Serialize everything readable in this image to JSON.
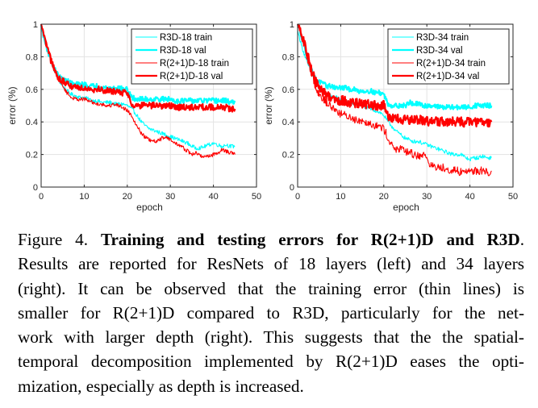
{
  "chart_data": [
    {
      "type": "line",
      "title": "",
      "xlabel": "epoch",
      "ylabel": "error (%)",
      "xlim": [
        0,
        50
      ],
      "ylim": [
        0,
        1
      ],
      "xticks": [
        0,
        10,
        20,
        30,
        40,
        50
      ],
      "yticks": [
        0,
        0.2,
        0.4,
        0.6,
        0.8,
        1
      ],
      "xtick_labels": [
        "0",
        "10",
        "20",
        "30",
        "40",
        "50"
      ],
      "ytick_labels": [
        "0",
        "0.2",
        "0.4",
        "0.6",
        "0.8",
        "1"
      ],
      "grid": true,
      "legend_position": "top-right",
      "x": [
        0,
        1,
        2,
        3,
        4,
        5,
        6,
        7,
        8,
        9,
        10,
        11,
        12,
        13,
        14,
        15,
        16,
        17,
        18,
        19,
        20,
        21,
        22,
        23,
        24,
        25,
        26,
        27,
        28,
        29,
        30,
        31,
        32,
        33,
        34,
        35,
        36,
        37,
        38,
        39,
        40,
        41,
        42,
        43,
        44,
        45
      ],
      "series": [
        {
          "name": "R3D-18 train",
          "color": "#00FFFF",
          "style": "thin",
          "noise": 0.012,
          "values": [
            0.98,
            0.88,
            0.8,
            0.72,
            0.66,
            0.62,
            0.59,
            0.57,
            0.56,
            0.55,
            0.55,
            0.54,
            0.53,
            0.53,
            0.52,
            0.52,
            0.52,
            0.51,
            0.51,
            0.51,
            0.5,
            0.48,
            0.45,
            0.41,
            0.38,
            0.36,
            0.35,
            0.34,
            0.33,
            0.32,
            0.31,
            0.3,
            0.29,
            0.28,
            0.27,
            0.25,
            0.24,
            0.24,
            0.25,
            0.26,
            0.27,
            0.26,
            0.25,
            0.26,
            0.25,
            0.25
          ]
        },
        {
          "name": "R3D-18 val",
          "color": "#00FFFF",
          "style": "thick",
          "noise": 0.016,
          "values": [
            0.99,
            0.88,
            0.8,
            0.73,
            0.68,
            0.66,
            0.65,
            0.64,
            0.63,
            0.63,
            0.63,
            0.62,
            0.62,
            0.62,
            0.61,
            0.61,
            0.61,
            0.61,
            0.61,
            0.6,
            0.6,
            0.55,
            0.54,
            0.54,
            0.54,
            0.54,
            0.54,
            0.54,
            0.54,
            0.54,
            0.54,
            0.53,
            0.53,
            0.53,
            0.53,
            0.53,
            0.53,
            0.53,
            0.53,
            0.53,
            0.53,
            0.53,
            0.53,
            0.53,
            0.52,
            0.52
          ]
        },
        {
          "name": "R(2+1)D-18 train",
          "color": "#FF0000",
          "style": "thin",
          "noise": 0.012,
          "values": [
            1.0,
            0.9,
            0.82,
            0.74,
            0.67,
            0.62,
            0.58,
            0.55,
            0.54,
            0.54,
            0.54,
            0.53,
            0.52,
            0.51,
            0.51,
            0.5,
            0.5,
            0.51,
            0.5,
            0.49,
            0.47,
            0.44,
            0.39,
            0.34,
            0.31,
            0.29,
            0.28,
            0.28,
            0.3,
            0.31,
            0.29,
            0.27,
            0.26,
            0.24,
            0.22,
            0.2,
            0.21,
            0.19,
            0.19,
            0.19,
            0.2,
            0.21,
            0.23,
            0.22,
            0.21,
            0.2
          ]
        },
        {
          "name": "R(2+1)D-18 val",
          "color": "#FF0000",
          "style": "thick",
          "noise": 0.02,
          "values": [
            1.0,
            0.89,
            0.8,
            0.72,
            0.67,
            0.65,
            0.63,
            0.62,
            0.62,
            0.61,
            0.61,
            0.61,
            0.6,
            0.6,
            0.6,
            0.59,
            0.59,
            0.59,
            0.58,
            0.58,
            0.58,
            0.51,
            0.5,
            0.5,
            0.5,
            0.5,
            0.5,
            0.5,
            0.5,
            0.5,
            0.5,
            0.49,
            0.49,
            0.49,
            0.49,
            0.49,
            0.49,
            0.49,
            0.49,
            0.49,
            0.49,
            0.49,
            0.49,
            0.49,
            0.48,
            0.48
          ]
        }
      ]
    },
    {
      "type": "line",
      "title": "",
      "xlabel": "epoch",
      "ylabel": "error (%)",
      "xlim": [
        0,
        50
      ],
      "ylim": [
        0,
        1
      ],
      "xticks": [
        0,
        10,
        20,
        30,
        40,
        50
      ],
      "yticks": [
        0,
        0.2,
        0.4,
        0.6,
        0.8,
        1
      ],
      "xtick_labels": [
        "0",
        "10",
        "20",
        "30",
        "40",
        "50"
      ],
      "ytick_labels": [
        "0",
        "0.2",
        "0.4",
        "0.6",
        "0.8",
        "1"
      ],
      "grid": true,
      "legend_position": "top-right",
      "x": [
        0,
        1,
        2,
        3,
        4,
        5,
        6,
        7,
        8,
        9,
        10,
        11,
        12,
        13,
        14,
        15,
        16,
        17,
        18,
        19,
        20,
        21,
        22,
        23,
        24,
        25,
        26,
        27,
        28,
        29,
        30,
        31,
        32,
        33,
        34,
        35,
        36,
        37,
        38,
        39,
        40,
        41,
        42,
        43,
        44,
        45
      ],
      "series": [
        {
          "name": "R3D-34 train",
          "color": "#00FFFF",
          "style": "thin",
          "noise": 0.012,
          "values": [
            0.96,
            0.86,
            0.78,
            0.71,
            0.66,
            0.62,
            0.59,
            0.57,
            0.56,
            0.55,
            0.54,
            0.53,
            0.52,
            0.51,
            0.51,
            0.5,
            0.49,
            0.48,
            0.47,
            0.46,
            0.44,
            0.4,
            0.37,
            0.34,
            0.32,
            0.3,
            0.29,
            0.28,
            0.28,
            0.27,
            0.26,
            0.25,
            0.24,
            0.23,
            0.22,
            0.21,
            0.2,
            0.2,
            0.2,
            0.18,
            0.17,
            0.18,
            0.18,
            0.19,
            0.18,
            0.18
          ]
        },
        {
          "name": "R3D-34 val",
          "color": "#00FFFF",
          "style": "thick",
          "noise": 0.015,
          "values": [
            1.0,
            0.92,
            0.82,
            0.73,
            0.67,
            0.65,
            0.63,
            0.62,
            0.62,
            0.61,
            0.61,
            0.61,
            0.6,
            0.6,
            0.59,
            0.59,
            0.59,
            0.59,
            0.58,
            0.58,
            0.57,
            0.51,
            0.5,
            0.5,
            0.5,
            0.5,
            0.52,
            0.51,
            0.51,
            0.5,
            0.5,
            0.5,
            0.5,
            0.49,
            0.49,
            0.49,
            0.49,
            0.49,
            0.49,
            0.49,
            0.49,
            0.5,
            0.5,
            0.5,
            0.5,
            0.5
          ]
        },
        {
          "name": "R(2+1)D-34 train",
          "color": "#FF0000",
          "style": "thin",
          "noise": 0.025,
          "values": [
            1.0,
            0.92,
            0.82,
            0.72,
            0.63,
            0.57,
            0.54,
            0.51,
            0.49,
            0.47,
            0.45,
            0.44,
            0.43,
            0.42,
            0.41,
            0.41,
            0.4,
            0.39,
            0.38,
            0.37,
            0.36,
            0.3,
            0.25,
            0.23,
            0.23,
            0.22,
            0.21,
            0.2,
            0.19,
            0.2,
            0.18,
            0.13,
            0.12,
            0.12,
            0.12,
            0.11,
            0.1,
            0.1,
            0.09,
            0.1,
            0.1,
            0.1,
            0.1,
            0.1,
            0.09,
            0.1
          ]
        },
        {
          "name": "R(2+1)D-34 val",
          "color": "#FF0000",
          "style": "thick",
          "noise": 0.03,
          "values": [
            1.0,
            0.93,
            0.84,
            0.74,
            0.66,
            0.61,
            0.58,
            0.56,
            0.55,
            0.54,
            0.53,
            0.53,
            0.52,
            0.52,
            0.51,
            0.51,
            0.51,
            0.5,
            0.5,
            0.5,
            0.5,
            0.43,
            0.42,
            0.42,
            0.41,
            0.41,
            0.41,
            0.41,
            0.41,
            0.41,
            0.41,
            0.4,
            0.4,
            0.4,
            0.4,
            0.4,
            0.4,
            0.4,
            0.4,
            0.4,
            0.4,
            0.4,
            0.4,
            0.4,
            0.4,
            0.4
          ]
        }
      ]
    }
  ],
  "caption": {
    "label": "Figure 4.",
    "title": "Training and testing errors for R(2+1)D and R3D",
    "lines": [
      "Results are reported for ResNets of 18 layers (left) and 34 layers",
      "(right).  It can be observed that the training error (thin lines) is",
      "smaller for R(2+1)D compared to R3D, particularly for the net-",
      "work with larger depth (right). This suggests that the the spatial-",
      "temporal decomposition implemented by R(2+1)D eases the opti-",
      "mization, especially as depth is increased."
    ]
  }
}
